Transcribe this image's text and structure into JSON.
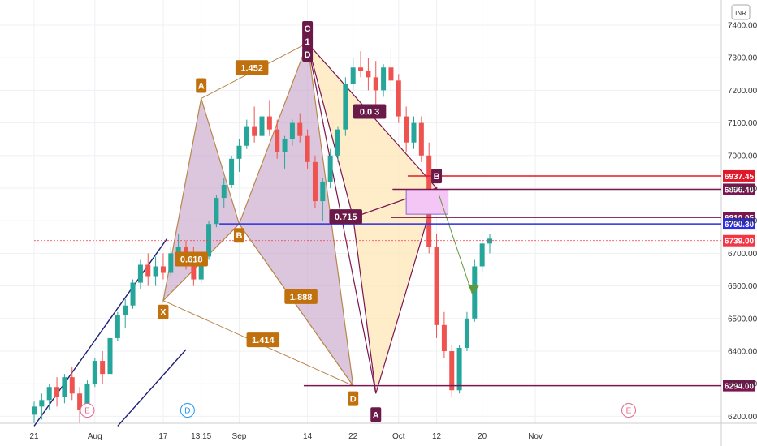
{
  "currency": "INR",
  "chart_data": {
    "type": "candlestick",
    "y_ticks": [
      7400,
      7300,
      7200,
      7100,
      7000,
      6900,
      6800,
      6700,
      6600,
      6500,
      6400,
      6300,
      6200
    ],
    "y_tick_labels": [
      "7400.00",
      "7300.00",
      "7200.00",
      "7100.00",
      "7000.00",
      "6900.00",
      "6800.00",
      "6700.00",
      "6600.00",
      "6500.00",
      "6400.00",
      "6300.00",
      "6200.00"
    ],
    "x_ticks": [
      {
        "label": "21",
        "bar": 0
      },
      {
        "label": "Aug",
        "bar": 8
      },
      {
        "label": "17",
        "bar": 17
      },
      {
        "label": "13:15",
        "bar": 22
      },
      {
        "label": "Sep",
        "bar": 27
      },
      {
        "label": "14",
        "bar": 36
      },
      {
        "label": "22",
        "bar": 42
      },
      {
        "label": "Oct",
        "bar": 48
      },
      {
        "label": "12",
        "bar": 53
      },
      {
        "label": "20",
        "bar": 59
      },
      {
        "label": "Nov",
        "bar": 66
      }
    ],
    "ohlc": [
      [
        6205,
        6245,
        6180,
        6230
      ],
      [
        6230,
        6270,
        6190,
        6250
      ],
      [
        6250,
        6300,
        6220,
        6290
      ],
      [
        6290,
        6320,
        6230,
        6260
      ],
      [
        6260,
        6330,
        6240,
        6320
      ],
      [
        6320,
        6350,
        6250,
        6270
      ],
      [
        6270,
        6290,
        6180,
        6220
      ],
      [
        6220,
        6310,
        6205,
        6300
      ],
      [
        6300,
        6380,
        6290,
        6370
      ],
      [
        6370,
        6400,
        6300,
        6330
      ],
      [
        6330,
        6450,
        6320,
        6440
      ],
      [
        6440,
        6520,
        6430,
        6510
      ],
      [
        6510,
        6560,
        6470,
        6540
      ],
      [
        6540,
        6620,
        6530,
        6610
      ],
      [
        6610,
        6680,
        6590,
        6665
      ],
      [
        6665,
        6700,
        6600,
        6630
      ],
      [
        6630,
        6690,
        6600,
        6660
      ],
      [
        6660,
        6700,
        6620,
        6640
      ],
      [
        6640,
        6720,
        6630,
        6700
      ],
      [
        6700,
        6760,
        6680,
        6720
      ],
      [
        6720,
        6740,
        6650,
        6680
      ],
      [
        6680,
        6720,
        6600,
        6620
      ],
      [
        6620,
        6700,
        6610,
        6690
      ],
      [
        6690,
        6800,
        6680,
        6790
      ],
      [
        6790,
        6880,
        6780,
        6870
      ],
      [
        6870,
        6930,
        6840,
        6910
      ],
      [
        6910,
        7000,
        6900,
        6990
      ],
      [
        6990,
        7050,
        6950,
        7030
      ],
      [
        7030,
        7110,
        7020,
        7090
      ],
      [
        7090,
        7150,
        7040,
        7060
      ],
      [
        7060,
        7140,
        7020,
        7120
      ],
      [
        7120,
        7170,
        7060,
        7080
      ],
      [
        7080,
        7110,
        6990,
        7010
      ],
      [
        7010,
        7060,
        6960,
        7050
      ],
      [
        7050,
        7110,
        7030,
        7100
      ],
      [
        7100,
        7130,
        7040,
        7060
      ],
      [
        7060,
        7080,
        6960,
        6980
      ],
      [
        6980,
        7000,
        6840,
        6860
      ],
      [
        6860,
        6930,
        6800,
        6920
      ],
      [
        6920,
        7020,
        6900,
        7000
      ],
      [
        7000,
        7090,
        6980,
        7080
      ],
      [
        7080,
        7240,
        7060,
        7220
      ],
      [
        7220,
        7300,
        7200,
        7270
      ],
      [
        7270,
        7320,
        7240,
        7260
      ],
      [
        7260,
        7300,
        7200,
        7240
      ],
      [
        7240,
        7290,
        7150,
        7200
      ],
      [
        7200,
        7280,
        7180,
        7270
      ],
      [
        7270,
        7330,
        7200,
        7230
      ],
      [
        7230,
        7250,
        7100,
        7120
      ],
      [
        7120,
        7150,
        7010,
        7040
      ],
      [
        7040,
        7120,
        7020,
        7100
      ],
      [
        7100,
        7120,
        6980,
        7000
      ],
      [
        7000,
        7040,
        6700,
        6720
      ],
      [
        6720,
        6760,
        6440,
        6480
      ],
      [
        6480,
        6520,
        6380,
        6400
      ],
      [
        6400,
        6420,
        6260,
        6280
      ],
      [
        6280,
        6420,
        6270,
        6410
      ],
      [
        6410,
        6520,
        6400,
        6500
      ],
      [
        6500,
        6680,
        6490,
        6660
      ],
      [
        6660,
        6740,
        6640,
        6730
      ],
      [
        6730,
        6760,
        6700,
        6745
      ]
    ],
    "pattern": {
      "points": [
        {
          "label": "X",
          "bar": 17,
          "y": 6555
        },
        {
          "label": "A",
          "bar": 22,
          "y": 7175
        },
        {
          "label": "B",
          "bar": 27,
          "y": 6790
        },
        {
          "label": "C",
          "bar": 36,
          "y": 7345
        },
        {
          "label": "D",
          "bar": 42,
          "y": 6294
        }
      ],
      "ratios": [
        "0.618",
        "1.452",
        "1.888",
        "1.414"
      ],
      "c_label": "C",
      "one_label": "1",
      "d2_label": "D"
    },
    "second_pattern": {
      "points": [
        {
          "label": "D",
          "bar": 36,
          "y": 7345
        },
        {
          "label": "0.715",
          "bar": 42,
          "y": 6810
        },
        {
          "label": "A",
          "bar": 45,
          "y": 6270
        },
        {
          "label": "B",
          "bar": 53,
          "y": 6900
        }
      ],
      "ratio_top": "0.0 3",
      "ratio_mid": "0.715",
      "a_label": "A",
      "b_label": "B"
    },
    "levels": [
      {
        "value": 6937.45,
        "label": "6937.45",
        "color": "#e0192a"
      },
      {
        "value": 6896.4,
        "label": "6896.40",
        "color": "#7a1650"
      },
      {
        "value": 6810.05,
        "label": "6810.05",
        "color": "#7a1650"
      },
      {
        "value": 6790.3,
        "label": "6790.30",
        "color": "#2c2ce0"
      },
      {
        "value": 6739.0,
        "label": "6739.00",
        "color": "#f23645"
      },
      {
        "value": 6294.0,
        "label": "6294.00",
        "color": "#7a1650"
      }
    ],
    "markers": [
      "E",
      "D",
      "E"
    ]
  },
  "colors": {
    "up": "#26a69a",
    "down": "#ef5350",
    "pattern_fill": "#c4a0c8",
    "pattern_line": "#b8864b",
    "second_fill": "#fde6b0",
    "second_line": "#7a1650",
    "label_orange": "#c0700c",
    "label_purple": "#6a1a48"
  }
}
